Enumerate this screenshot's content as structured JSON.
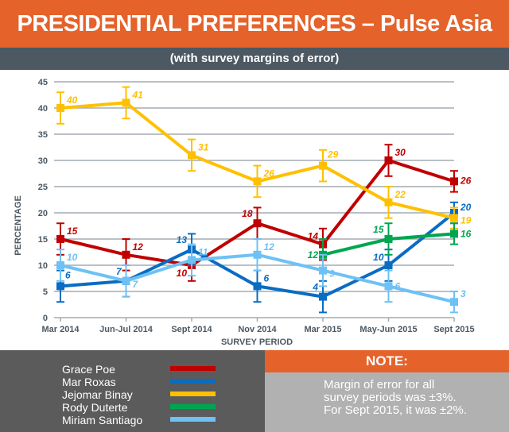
{
  "header": {
    "title": "PRESIDENTIAL PREFERENCES – Pulse Asia",
    "subtitle": "(with survey margins of error)"
  },
  "chart_data": {
    "type": "line",
    "xlabel": "SURVEY PERIOD",
    "ylabel": "PERCENTAGE",
    "ylim": [
      0,
      45
    ],
    "yticks": [
      0,
      5,
      10,
      15,
      20,
      25,
      30,
      35,
      40,
      45
    ],
    "grid": true,
    "legend_position": "bottom-left",
    "categories": [
      "Mar 2014",
      "Jun-Jul 2014",
      "Sept 2014",
      "Nov 2014",
      "Mar 2015",
      "May-Jun 2015",
      "Sept 2015"
    ],
    "error_margin": [
      3,
      3,
      3,
      3,
      3,
      3,
      2
    ],
    "series": [
      {
        "name": "Grace Poe",
        "color": "#C00000",
        "values": [
          15,
          12,
          10,
          18,
          14,
          30,
          26
        ]
      },
      {
        "name": "Mar Roxas",
        "color": "#0A6CC2",
        "values": [
          6,
          7,
          13,
          6,
          4,
          10,
          20
        ]
      },
      {
        "name": "Jejomar Binay",
        "color": "#FFC000",
        "values": [
          40,
          41,
          31,
          26,
          29,
          22,
          19
        ]
      },
      {
        "name": "Rody Duterte",
        "color": "#00A64F",
        "values": [
          null,
          null,
          null,
          null,
          12,
          15,
          16
        ]
      },
      {
        "name": "Miriam Santiago",
        "color": "#6EC1F5",
        "values": [
          10,
          7,
          11,
          12,
          9,
          6,
          3
        ]
      }
    ]
  },
  "note": {
    "title": "NOTE:",
    "lines": [
      "Margin of error for all",
      "survey periods was ±3%.",
      "For Sept 2015, it was ±2%."
    ]
  }
}
